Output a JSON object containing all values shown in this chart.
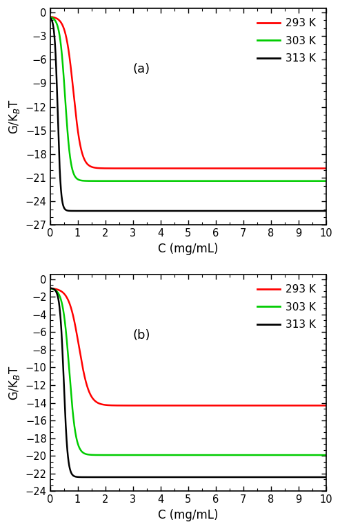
{
  "panel_a": {
    "label": "(a)",
    "ylim": [
      -27,
      0.5
    ],
    "yticks": [
      0,
      -3,
      -6,
      -9,
      -12,
      -15,
      -18,
      -21,
      -24,
      -27
    ],
    "curves": [
      {
        "color": "#ff0000",
        "T": "293 K",
        "G0": -0.5,
        "plateau": -19.8,
        "k": 7.0,
        "c0": 0.85
      },
      {
        "color": "#00cc00",
        "T": "303 K",
        "G0": -0.5,
        "plateau": -21.4,
        "k": 10.0,
        "c0": 0.55
      },
      {
        "color": "#000000",
        "T": "313 K",
        "G0": -0.5,
        "plateau": -25.2,
        "k": 18.0,
        "c0": 0.28
      }
    ]
  },
  "panel_b": {
    "label": "(b)",
    "ylim": [
      -24,
      0.5
    ],
    "yticks": [
      0,
      -2,
      -4,
      -6,
      -8,
      -10,
      -12,
      -14,
      -16,
      -18,
      -20,
      -22,
      -24
    ],
    "curves": [
      {
        "color": "#ff0000",
        "T": "293 K",
        "G0": -1.0,
        "plateau": -14.3,
        "k": 5.5,
        "c0": 1.05
      },
      {
        "color": "#00cc00",
        "T": "303 K",
        "G0": -1.0,
        "plateau": -19.9,
        "k": 8.5,
        "c0": 0.7
      },
      {
        "color": "#000000",
        "T": "313 K",
        "G0": -1.0,
        "plateau": -22.4,
        "k": 14.0,
        "c0": 0.5
      }
    ]
  },
  "xlim": [
    0,
    10
  ],
  "xticks": [
    0,
    1,
    2,
    3,
    4,
    5,
    6,
    7,
    8,
    9,
    10
  ],
  "xlabel": "C (mg/mL)",
  "legend_labels": [
    "293 K",
    "303 K",
    "313 K"
  ],
  "legend_colors": [
    "#ff0000",
    "#00cc00",
    "#000000"
  ],
  "linewidth": 1.8
}
